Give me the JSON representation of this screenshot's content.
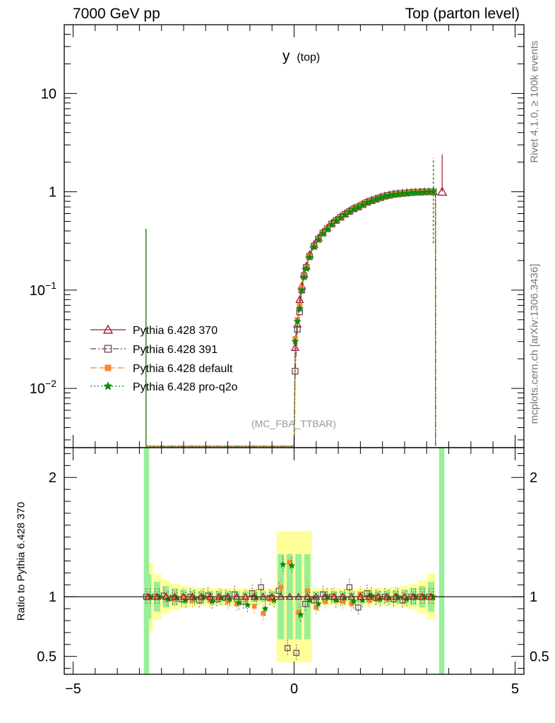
{
  "header": {
    "left": "7000 GeV pp",
    "right": "Top (parton level)"
  },
  "side_labels": {
    "rivet": "Rivet 4.1.0, ≥ 100k events",
    "mcplots": "mcplots.cern.ch [arXiv:1306.3436]",
    "ratio_ylabel": "Ratio to Pythia 6.428 370"
  },
  "colors": {
    "p370": "#a0142d",
    "p391": "#6b4a5a",
    "pdefault": "#f7892f",
    "pq2o": "#0b8a0b",
    "band_yellow": "#ffff99",
    "band_green": "#99ee99"
  },
  "chart_data": [
    {
      "type": "line",
      "title": "y",
      "title_sub": "(top)",
      "watermark": "(MC_FBA_TTBAR)",
      "xlabel": "",
      "ylabel": "",
      "yscale": "log",
      "xlim": [
        -5.2,
        5.2
      ],
      "ylim": [
        0.0025,
        50
      ],
      "x_ticks": [
        -5,
        0,
        5
      ],
      "y_ticks": [
        {
          "value": 10,
          "base": "10",
          "exp": ""
        },
        {
          "value": 1,
          "base": "1",
          "exp": ""
        },
        {
          "value": 0.1,
          "base": "10",
          "exp": "−1"
        },
        {
          "value": 0.01,
          "base": "10",
          "exp": "−2"
        }
      ],
      "x_pos": [
        0.025,
        0.075,
        0.125,
        0.175,
        0.225,
        0.275,
        0.35,
        0.45,
        0.55,
        0.65,
        0.75,
        0.85,
        0.95,
        1.05,
        1.15,
        1.25,
        1.35,
        1.45,
        1.55,
        1.65,
        1.75,
        1.85,
        1.95,
        2.05,
        2.15,
        2.25,
        2.35,
        2.45,
        2.55,
        2.65,
        2.75,
        2.85,
        2.95,
        3.05,
        3.15
      ],
      "series": [
        {
          "name": "Pythia 6.428 370",
          "color": "p370",
          "marker": "triangle",
          "dash": "",
          "values": [
            0.026,
            0.045,
            0.08,
            0.11,
            0.145,
            0.175,
            0.23,
            0.29,
            0.34,
            0.39,
            0.43,
            0.48,
            0.52,
            0.56,
            0.6,
            0.64,
            0.68,
            0.71,
            0.75,
            0.79,
            0.82,
            0.85,
            0.88,
            0.91,
            0.93,
            0.95,
            0.96,
            0.97,
            0.98,
            0.985,
            0.99,
            0.995,
            1.0,
            1.0,
            1.0
          ]
        },
        {
          "name": "Pythia 6.428 391",
          "color": "p391",
          "marker": "square",
          "dash": "8,3,2,3",
          "values": [
            0.015,
            0.04,
            0.06,
            0.1,
            0.14,
            0.17,
            0.22,
            0.28,
            0.33,
            0.38,
            0.42,
            0.47,
            0.51,
            0.55,
            0.59,
            0.63,
            0.67,
            0.7,
            0.74,
            0.78,
            0.81,
            0.84,
            0.87,
            0.9,
            0.92,
            0.94,
            0.95,
            0.96,
            0.97,
            0.98,
            0.99,
            0.99,
            1.0,
            1.0,
            1.0
          ]
        },
        {
          "name": "Pythia 6.428 default",
          "color": "pdefault",
          "marker": "fsquare",
          "dash": "9,4",
          "values": [
            0.032,
            0.05,
            0.07,
            0.105,
            0.14,
            0.17,
            0.22,
            0.28,
            0.33,
            0.38,
            0.42,
            0.47,
            0.51,
            0.55,
            0.59,
            0.63,
            0.67,
            0.7,
            0.74,
            0.78,
            0.81,
            0.84,
            0.87,
            0.9,
            0.92,
            0.94,
            0.95,
            0.96,
            0.97,
            0.98,
            0.99,
            0.99,
            1.0,
            1.0,
            1.0
          ]
        },
        {
          "name": "Pythia 6.428 pro-q2o",
          "color": "pq2o",
          "marker": "star",
          "dash": "2,3",
          "values": [
            0.03,
            0.048,
            0.065,
            0.1,
            0.135,
            0.165,
            0.215,
            0.275,
            0.325,
            0.375,
            0.415,
            0.465,
            0.505,
            0.545,
            0.585,
            0.625,
            0.665,
            0.695,
            0.735,
            0.775,
            0.805,
            0.835,
            0.865,
            0.895,
            0.915,
            0.935,
            0.945,
            0.955,
            0.965,
            0.975,
            0.985,
            0.985,
            0.99,
            1.0,
            1.0
          ]
        }
      ]
    },
    {
      "type": "line",
      "title": "Ratio to Pythia 6.428 370",
      "xlabel": "",
      "ylabel": "Ratio to Pythia 6.428 370",
      "xlim": [
        -5.2,
        5.2
      ],
      "ylim": [
        0.35,
        2.25
      ],
      "x_ticks": [
        -5,
        0,
        5
      ],
      "y_ticks": [
        0.5,
        1,
        2
      ],
      "reference": 1,
      "points": {
        "x": [
          -3.3,
          -3.1,
          -2.9,
          -2.7,
          -2.5,
          -2.3,
          -2.1,
          -1.9,
          -1.7,
          -1.5,
          -1.3,
          -1.1,
          -0.9,
          -0.7,
          -0.5,
          -0.3,
          -0.1,
          0.1,
          0.3,
          0.5,
          0.7,
          0.9,
          1.1,
          1.3,
          1.5,
          1.7,
          1.9,
          2.1,
          2.3,
          2.5,
          2.7,
          2.9,
          3.1
        ],
        "p391": [
          1.0,
          1.0,
          1.01,
          0.99,
          0.98,
          1.0,
          0.97,
          1.01,
          0.98,
          0.99,
          1.02,
          0.96,
          1.03,
          1.08,
          0.99,
          1.05,
          0.57,
          0.53,
          0.94,
          0.97,
          1.02,
          1.0,
          0.98,
          1.08,
          0.91,
          1.03,
          0.99,
          1.0,
          0.98,
          0.97,
          1.0,
          1.0,
          1.0
        ],
        "pdefault": [
          1.0,
          1.0,
          0.99,
          0.98,
          1.0,
          0.97,
          0.99,
          0.97,
          1.0,
          0.96,
          0.94,
          0.99,
          0.92,
          0.86,
          0.98,
          1.08,
          1.29,
          0.87,
          1.05,
          0.91,
          0.96,
          1.01,
          0.96,
          0.94,
          1.02,
          0.97,
          1.0,
          0.98,
          1.01,
          0.99,
          1.0,
          1.0,
          1.0
        ],
        "pq2o": [
          1.0,
          1.0,
          0.98,
          0.99,
          0.97,
          0.99,
          1.0,
          0.96,
          0.99,
          0.98,
          0.95,
          0.93,
          0.99,
          0.9,
          0.97,
          1.27,
          1.26,
          0.85,
          0.97,
          0.94,
          1.0,
          0.97,
          0.99,
          0.96,
          0.97,
          1.01,
          0.98,
          0.99,
          1.0,
          0.98,
          1.0,
          1.0,
          1.0
        ]
      }
    }
  ]
}
